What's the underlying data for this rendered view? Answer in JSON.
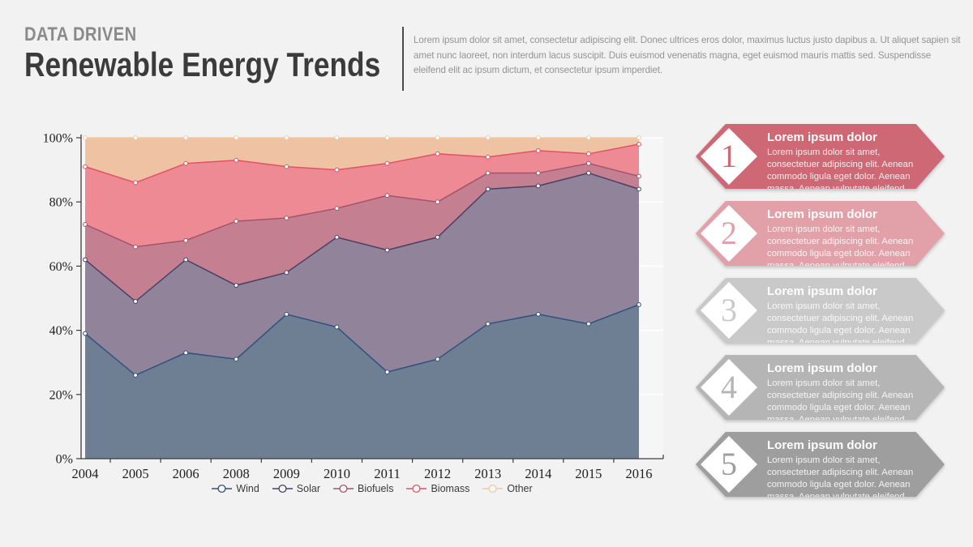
{
  "header": {
    "kicker": "DATA DRIVEN",
    "title": "Renewable Energy Trends",
    "description": "Lorem ipsum dolor sit amet, consectetur adipiscing elit. Donec ultrices eros dolor, maximus luctus justo dapibus a. Ut aliquet sapien sit amet nunc laoreet, non interdum lacus suscipit. Duis euismod venenatis magna, eget euismod mauris mattis sed. Suspendisse eleifend elit ac ipsum dictum, et consectetur ipsum imperdiet."
  },
  "chart_data": {
    "type": "area",
    "stacked": true,
    "units": "percent",
    "x": [
      "2004",
      "2005",
      "2006",
      "2008",
      "2009",
      "2010",
      "2011",
      "2012",
      "2013",
      "2014",
      "2015",
      "2016"
    ],
    "y_ticks": [
      0,
      20,
      40,
      60,
      80,
      100
    ],
    "y_tick_labels": [
      "0%",
      "20%",
      "40%",
      "60%",
      "80%",
      "100%"
    ],
    "ylim": [
      0,
      100
    ],
    "grid": "horizontal",
    "legend_position": "bottom",
    "series": [
      {
        "name": "Wind",
        "fill": "#687a90",
        "line": "#30517c",
        "values": [
          39,
          26,
          33,
          31,
          45,
          41,
          27,
          31,
          42,
          45,
          42,
          48
        ]
      },
      {
        "name": "Solar",
        "fill": "#8d7e95",
        "line": "#493f66",
        "values": [
          23,
          23,
          29,
          23,
          13,
          28,
          38,
          38,
          42,
          40,
          47,
          36
        ]
      },
      {
        "name": "Biofuels",
        "fill": "#c27b8c",
        "line": "#a4536f",
        "values": [
          11,
          17,
          6,
          20,
          17,
          9,
          17,
          11,
          5,
          4,
          3,
          4
        ]
      },
      {
        "name": "Biomass",
        "fill": "#ec8590",
        "line": "#e05362",
        "values": [
          18,
          20,
          24,
          19,
          16,
          12,
          10,
          15,
          5,
          7,
          3,
          10
        ]
      },
      {
        "name": "Other",
        "fill": "#edbf9e",
        "line": "#f1c8a3",
        "values": [
          9,
          14,
          8,
          7,
          9,
          10,
          8,
          5,
          6,
          4,
          5,
          2
        ]
      }
    ],
    "colors": {
      "plot_bg": "#f6f6f7",
      "grid": "#ffffff",
      "axis": "#3c3c3c",
      "tick_text": "#1f1f1f"
    }
  },
  "sidebar": {
    "items": [
      {
        "number": "1",
        "color": "#cd6874",
        "title": "Lorem ipsum dolor",
        "body": "Lorem ipsum dolor sit amet, consectetuer adipiscing elit. Aenean commodo ligula eget dolor. Aenean massa.  Aenean vulputate eleifend tellus."
      },
      {
        "number": "2",
        "color": "#e2a0a9",
        "title": "Lorem ipsum dolor",
        "body": "Lorem ipsum dolor sit amet, consectetuer adipiscing elit. Aenean commodo ligula eget dolor. Aenean massa.  Aenean vulputate eleifend tellus."
      },
      {
        "number": "3",
        "color": "#c9c9ca",
        "title": "Lorem ipsum dolor",
        "body": "Lorem ipsum dolor sit amet, consectetuer adipiscing elit. Aenean commodo ligula eget dolor. Aenean massa.  Aenean vulputate eleifend tellus."
      },
      {
        "number": "4",
        "color": "#b5b5b6",
        "title": "Lorem ipsum dolor",
        "body": "Lorem ipsum dolor sit amet, consectetuer adipiscing elit. Aenean commodo ligula eget dolor. Aenean massa.  Aenean vulputate eleifend tellus."
      },
      {
        "number": "5",
        "color": "#9e9e9f",
        "title": "Lorem ipsum dolor",
        "body": "Lorem ipsum dolor sit amet, consectetuer adipiscing elit. Aenean commodo ligula eget dolor. Aenean massa.  Aenean vulputate eleifend tellus."
      }
    ]
  }
}
